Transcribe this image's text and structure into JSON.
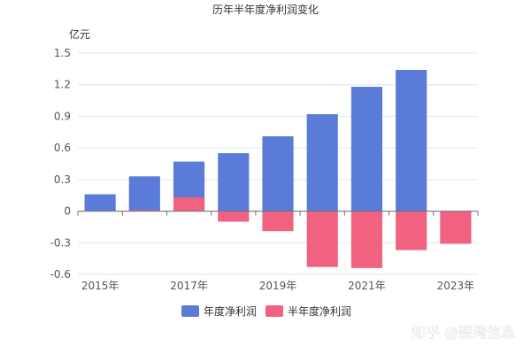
{
  "chart_data": {
    "type": "bar",
    "title": "历年半年度净利润变化",
    "unit_label": "亿元",
    "ylim": [
      -0.6,
      1.5
    ],
    "yticks": [
      -0.6,
      -0.3,
      0,
      0.3,
      0.6,
      0.9,
      1.2,
      1.5
    ],
    "ytick_labels": [
      "-0.6",
      "-0.3",
      "0",
      "0.3",
      "0.6",
      "0.9",
      "1.2",
      "1.5"
    ],
    "categories": [
      "2015年",
      "2016年",
      "2017年",
      "2018年",
      "2019年",
      "2020年",
      "2021年",
      "2022年",
      "2023年"
    ],
    "xtick_labels_shown": [
      "2015年",
      "2017年",
      "2019年",
      "2021年",
      "2023年"
    ],
    "grid": true,
    "legend_position": "bottom",
    "series": [
      {
        "name": "年度净利润",
        "color": "#5b7bd8",
        "values": [
          0.16,
          0.33,
          0.47,
          0.55,
          0.71,
          0.92,
          1.18,
          1.34,
          null
        ]
      },
      {
        "name": "半年度净利润",
        "color": "#f0627f",
        "values": [
          0.0,
          0.01,
          0.13,
          -0.1,
          -0.19,
          -0.53,
          -0.54,
          -0.37,
          -0.31
        ]
      }
    ]
  },
  "watermark": "知乎 @碧湾信息"
}
